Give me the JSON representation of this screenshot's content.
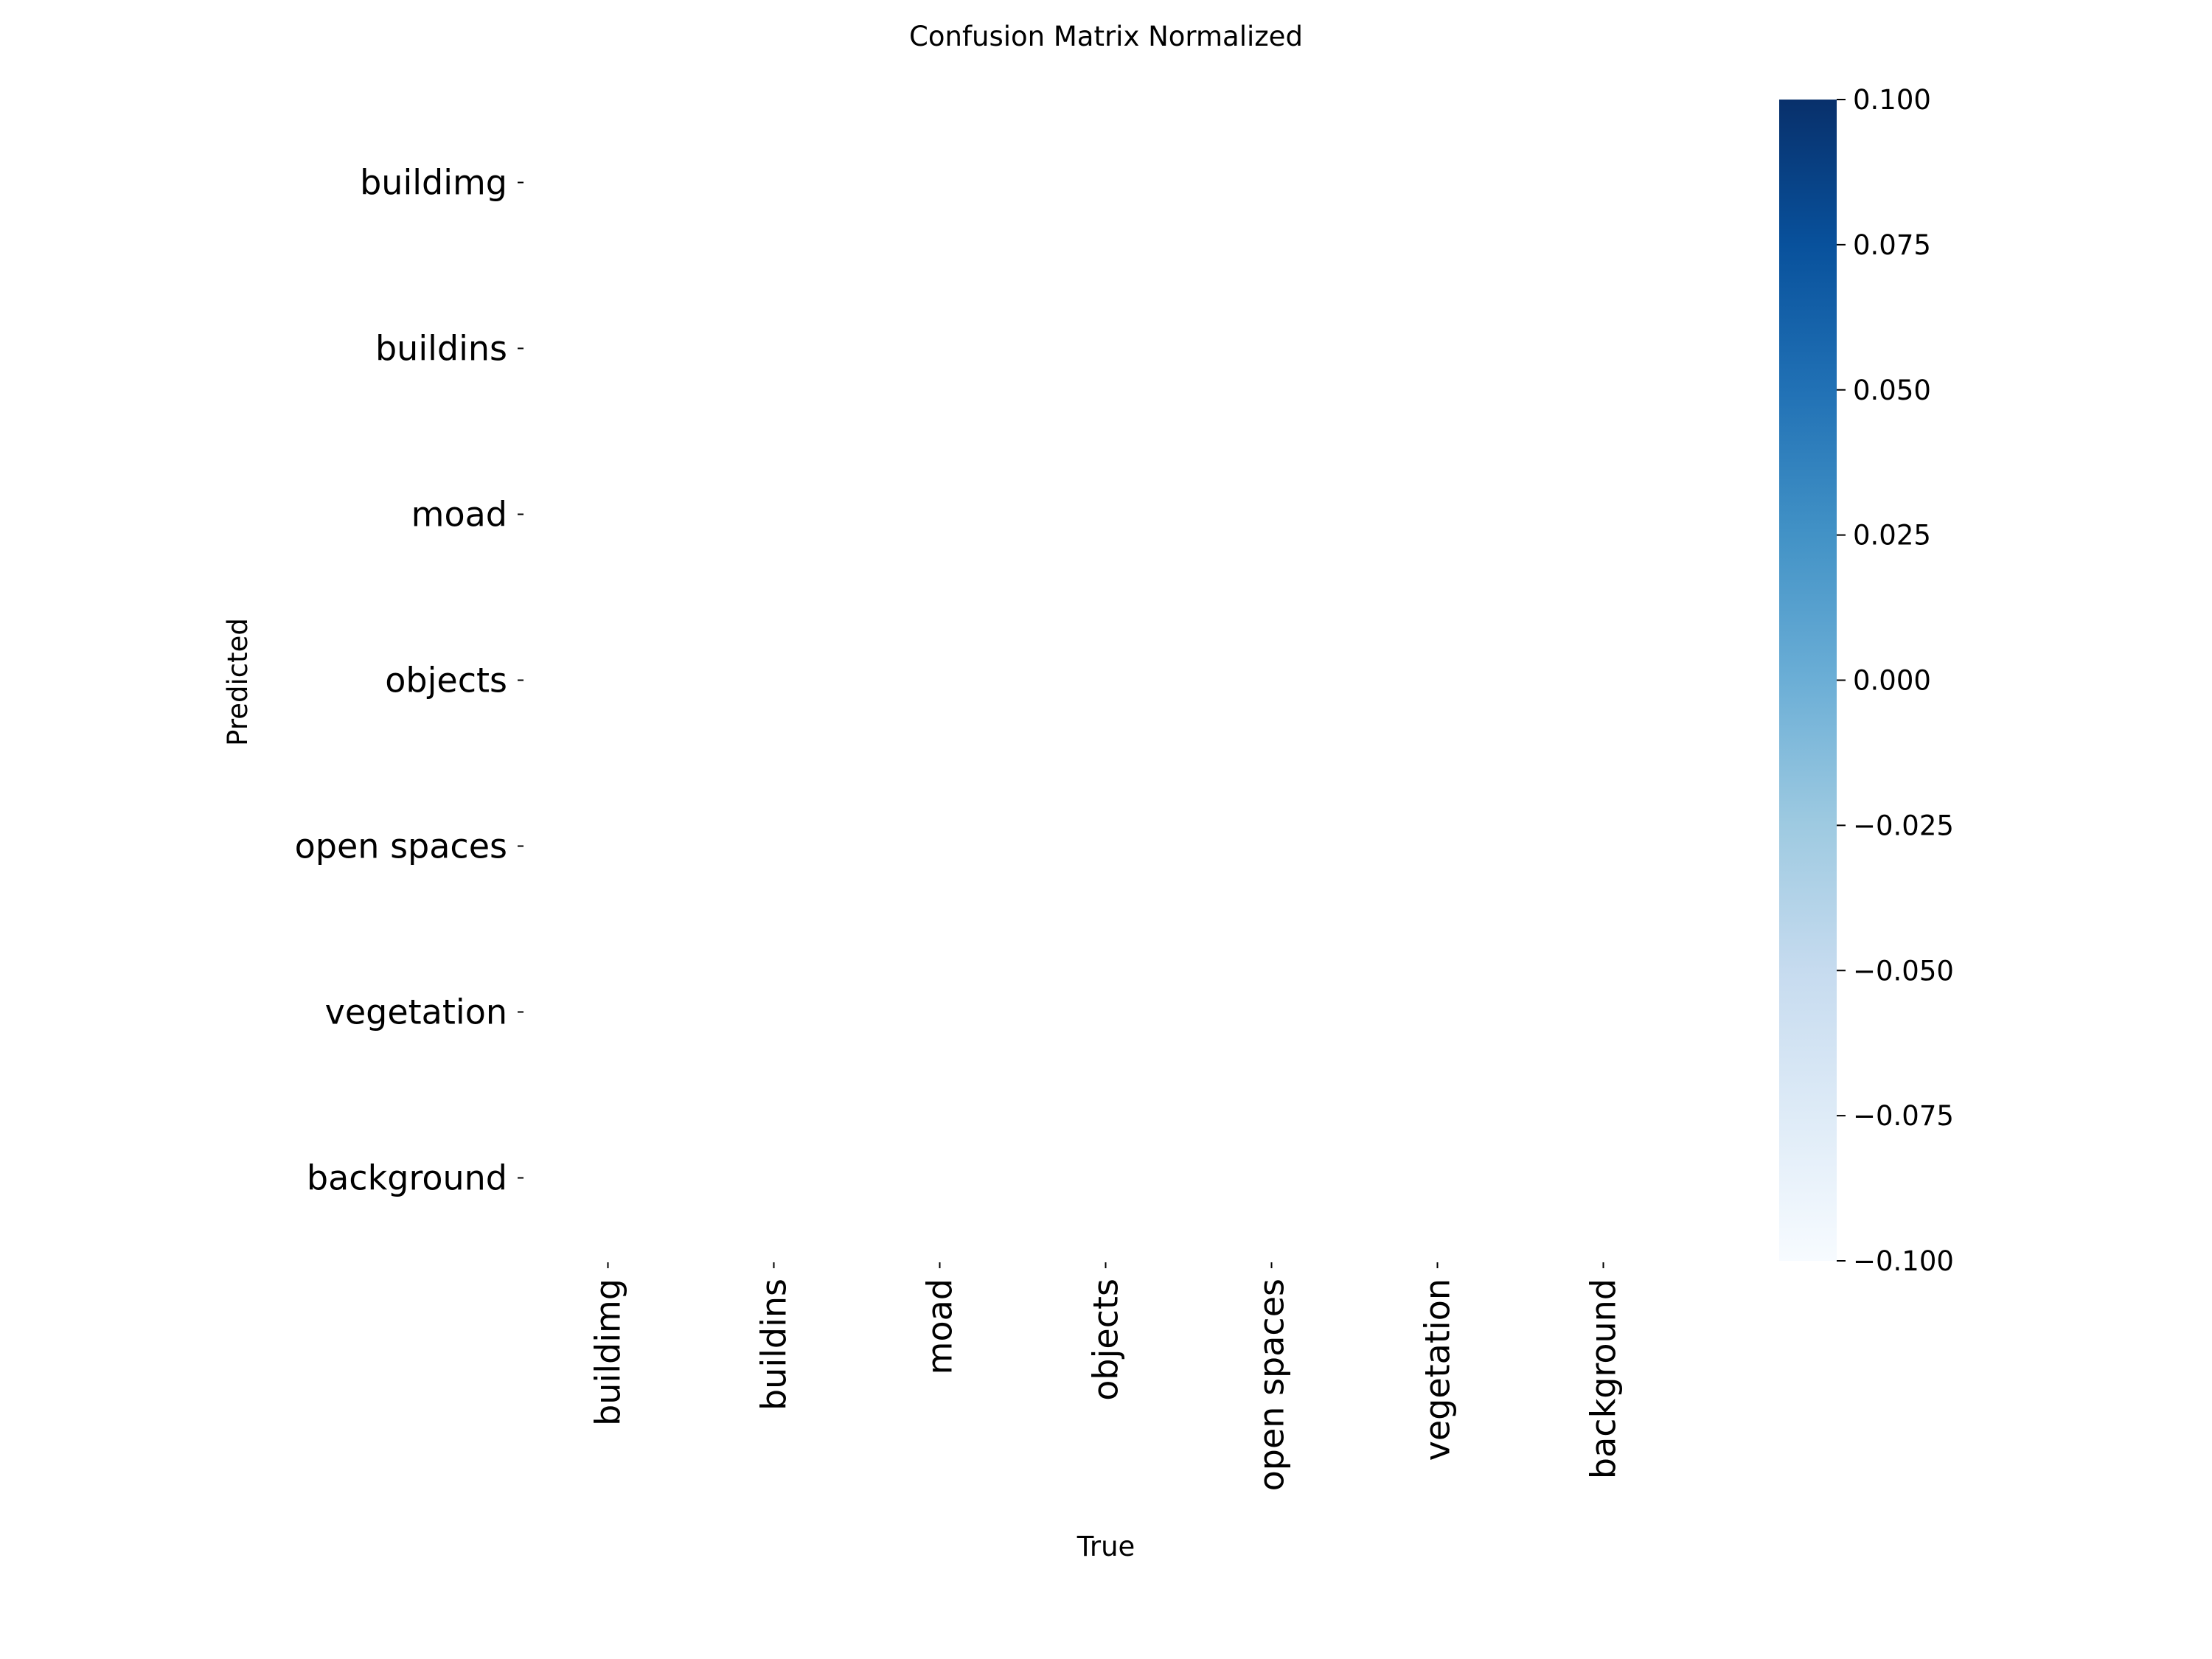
{
  "chart_data": {
    "type": "heatmap",
    "title": "Confusion Matrix Normalized",
    "xlabel": "True",
    "ylabel": "Predicted",
    "x_categories": [
      "buildimg",
      "buildins",
      "moad",
      "objects",
      "open spaces",
      "vegetation",
      "background"
    ],
    "y_categories": [
      "buildimg",
      "buildins",
      "moad",
      "objects",
      "open spaces",
      "vegetation",
      "background"
    ],
    "values": [
      [
        null,
        null,
        null,
        null,
        null,
        null,
        null
      ],
      [
        null,
        null,
        null,
        null,
        null,
        null,
        null
      ],
      [
        null,
        null,
        null,
        null,
        null,
        null,
        null
      ],
      [
        null,
        null,
        null,
        null,
        null,
        null,
        null
      ],
      [
        null,
        null,
        null,
        null,
        null,
        null,
        null
      ],
      [
        null,
        null,
        null,
        null,
        null,
        null,
        null
      ],
      [
        null,
        null,
        null,
        null,
        null,
        null,
        null
      ]
    ],
    "colorbar": {
      "range": [
        -0.1,
        0.1
      ],
      "ticks": [
        "0.100",
        "0.075",
        "0.050",
        "0.025",
        "0.000",
        "−0.025",
        "−0.050",
        "−0.075",
        "−0.100"
      ],
      "colormap": "Blues",
      "color_low": "#f7fbff",
      "color_high": "#08306b"
    }
  }
}
